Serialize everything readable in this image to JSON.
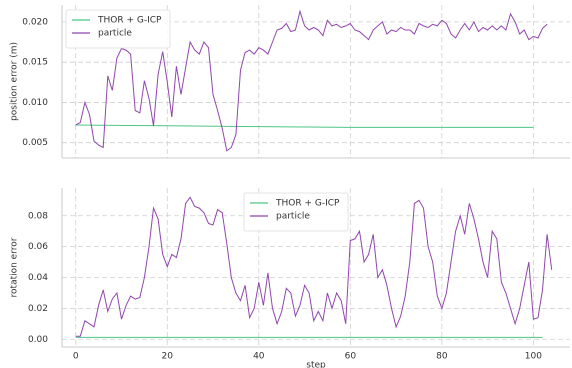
{
  "chart_data": [
    {
      "type": "line",
      "ylabel": "position error (m)",
      "legend": "upper left",
      "grid": true,
      "xlim": [
        -3,
        108
      ],
      "ylim": [
        0.0031,
        0.0221
      ],
      "xticks": [
        0,
        20,
        40,
        60,
        80,
        100
      ],
      "yticks": [
        0.005,
        {
          "value": 0.01,
          "label": "0.010"
        },
        0.015,
        {
          "value": 0.02,
          "label": "0.020"
        }
      ],
      "series": [
        {
          "name": "THOR + G-ICP",
          "color": "#4cc585",
          "x": [
            0,
            20,
            40,
            60,
            80,
            100
          ],
          "values": [
            0.0072,
            0.0071,
            0.007,
            0.0069,
            0.0069,
            0.0069
          ]
        },
        {
          "name": "particle",
          "color": "#9146ad",
          "x": [
            0,
            1,
            2,
            3,
            4,
            5,
            6,
            7,
            8,
            9,
            10,
            11,
            12,
            13,
            14,
            15,
            16,
            17,
            18,
            19,
            20,
            21,
            22,
            23,
            24,
            25,
            26,
            27,
            28,
            29,
            30,
            31,
            32,
            33,
            34,
            35,
            36,
            37,
            38,
            39,
            40,
            41,
            42,
            43,
            44,
            45,
            46,
            47,
            48,
            49,
            50,
            51,
            52,
            53,
            54,
            55,
            56,
            57,
            58,
            59,
            60,
            61,
            62,
            63,
            64,
            65,
            66,
            67,
            68,
            69,
            70,
            71,
            72,
            73,
            74,
            75,
            76,
            77,
            78,
            79,
            80,
            81,
            82,
            83,
            84,
            85,
            86,
            87,
            88,
            89,
            90,
            91,
            92,
            93,
            94,
            95,
            96,
            97,
            98,
            99,
            100,
            101,
            102,
            103
          ],
          "values": [
            0.0072,
            0.0075,
            0.01,
            0.0085,
            0.0052,
            0.0047,
            0.0044,
            0.0133,
            0.0115,
            0.0155,
            0.0167,
            0.0165,
            0.016,
            0.009,
            0.0087,
            0.0127,
            0.0105,
            0.0071,
            0.0135,
            0.0163,
            0.0125,
            0.0082,
            0.0145,
            0.011,
            0.0143,
            0.0175,
            0.0165,
            0.016,
            0.0175,
            0.0168,
            0.011,
            0.009,
            0.0068,
            0.004,
            0.0044,
            0.006,
            0.014,
            0.0162,
            0.0165,
            0.016,
            0.0168,
            0.0165,
            0.016,
            0.0175,
            0.019,
            0.0192,
            0.0198,
            0.0188,
            0.019,
            0.0213,
            0.0195,
            0.019,
            0.0193,
            0.019,
            0.0183,
            0.0202,
            0.0195,
            0.0197,
            0.0193,
            0.0195,
            0.0198,
            0.019,
            0.0188,
            0.0183,
            0.0178,
            0.019,
            0.0195,
            0.02,
            0.0185,
            0.019,
            0.0188,
            0.0193,
            0.019,
            0.019,
            0.0185,
            0.0198,
            0.0195,
            0.0193,
            0.0197,
            0.0195,
            0.0202,
            0.0198,
            0.0185,
            0.018,
            0.019,
            0.0198,
            0.019,
            0.02,
            0.0188,
            0.0193,
            0.019,
            0.0195,
            0.019,
            0.0195,
            0.019,
            0.021,
            0.02,
            0.0185,
            0.019,
            0.0178,
            0.0182,
            0.018,
            0.0192,
            0.0197
          ]
        }
      ]
    },
    {
      "type": "line",
      "ylabel": "rotation error",
      "xlabel": "step",
      "legend": "upper center",
      "grid": true,
      "xlim": [
        -3,
        108
      ],
      "ylim": [
        -0.005,
        0.098
      ],
      "xticks": [
        0,
        20,
        40,
        60,
        80,
        100
      ],
      "yticks": [
        {
          "value": 0,
          "label": "0.00"
        },
        {
          "value": 0.02,
          "label": "0.02"
        },
        {
          "value": 0.04,
          "label": "0.04"
        },
        {
          "value": 0.06,
          "label": "0.06"
        },
        {
          "value": 0.08,
          "label": "0.08"
        }
      ],
      "series": [
        {
          "name": "THOR + G-ICP",
          "color": "#4cc585",
          "x": [
            0,
            102
          ],
          "values": [
            0.0012,
            0.0012
          ]
        },
        {
          "name": "particle",
          "color": "#9146ad",
          "x": [
            0,
            1,
            2,
            3,
            4,
            5,
            6,
            7,
            8,
            9,
            10,
            11,
            12,
            13,
            14,
            15,
            16,
            17,
            18,
            19,
            20,
            21,
            22,
            23,
            24,
            25,
            26,
            27,
            28,
            29,
            30,
            31,
            32,
            33,
            34,
            35,
            36,
            37,
            38,
            39,
            40,
            41,
            42,
            43,
            44,
            45,
            46,
            47,
            48,
            49,
            50,
            51,
            52,
            53,
            54,
            55,
            56,
            57,
            58,
            59,
            60,
            61,
            62,
            63,
            64,
            65,
            66,
            67,
            68,
            69,
            70,
            71,
            72,
            73,
            74,
            75,
            76,
            77,
            78,
            79,
            80,
            81,
            82,
            83,
            84,
            85,
            86,
            87,
            88,
            89,
            90,
            91,
            92,
            93,
            94,
            95,
            96,
            97,
            98,
            99,
            100,
            101,
            102,
            103,
            104
          ],
          "values": [
            0.002,
            0.002,
            0.012,
            0.01,
            0.008,
            0.022,
            0.032,
            0.018,
            0.026,
            0.03,
            0.013,
            0.022,
            0.028,
            0.026,
            0.027,
            0.04,
            0.06,
            0.085,
            0.078,
            0.055,
            0.047,
            0.055,
            0.053,
            0.065,
            0.088,
            0.092,
            0.086,
            0.085,
            0.082,
            0.075,
            0.074,
            0.084,
            0.082,
            0.062,
            0.04,
            0.03,
            0.025,
            0.035,
            0.014,
            0.02,
            0.037,
            0.022,
            0.043,
            0.02,
            0.01,
            0.018,
            0.033,
            0.03,
            0.015,
            0.022,
            0.035,
            0.03,
            0.012,
            0.018,
            0.012,
            0.03,
            0.02,
            0.03,
            0.025,
            0.01,
            0.064,
            0.065,
            0.07,
            0.05,
            0.055,
            0.068,
            0.04,
            0.045,
            0.035,
            0.02,
            0.008,
            0.015,
            0.028,
            0.05,
            0.088,
            0.09,
            0.085,
            0.06,
            0.05,
            0.028,
            0.02,
            0.03,
            0.05,
            0.07,
            0.08,
            0.068,
            0.088,
            0.078,
            0.065,
            0.05,
            0.04,
            0.07,
            0.065,
            0.037,
            0.03,
            0.02,
            0.01,
            0.02,
            0.035,
            0.05,
            0.013,
            0.014,
            0.032,
            0.068,
            0.045
          ]
        }
      ]
    }
  ]
}
